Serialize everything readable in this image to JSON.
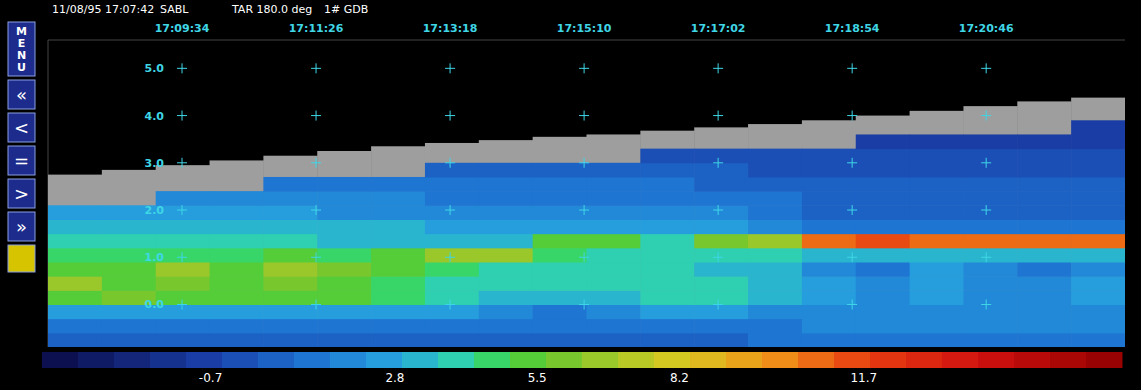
{
  "chart_data": {
    "type": "heatmap",
    "header": [
      "11/08/95 17:07:42",
      "SABL",
      "TAR 180.0 deg",
      "1# GDB"
    ],
    "menu": [
      "MENU",
      "«",
      "<",
      "=",
      ">",
      "»"
    ],
    "x": [
      61684.5,
      61729.5,
      61774.5,
      61819.5,
      61864.5,
      61909.5,
      61954.5,
      61999.5,
      62044.5,
      62089.5,
      62134.5,
      62179.5,
      62224.5,
      62269.5,
      62314.5,
      62359.5,
      62404.5,
      62449.5,
      62494.5,
      62539.5
    ],
    "y": [
      -0.75,
      -0.45,
      -0.15,
      0.15,
      0.45,
      0.75,
      1.05,
      1.35,
      1.65,
      1.95,
      2.25,
      2.55,
      2.85,
      3.15,
      3.45,
      3.75
    ],
    "cells": [
      [
        0.6,
        0.6,
        0.6,
        0.6,
        0.6,
        0.6,
        0.6,
        0.6,
        0.6,
        0.6,
        0.6,
        0.6,
        0.6,
        1.2,
        1.2,
        1.2,
        1.2,
        1.2,
        1.2,
        1.2
      ],
      [
        1.5,
        1.5,
        1.5,
        1.5,
        1.5,
        1.5,
        1.5,
        1.5,
        1.5,
        1.5,
        1.5,
        1.5,
        1.5,
        1.5,
        1.8,
        1.8,
        1.8,
        1.8,
        1.8,
        1.8
      ],
      [
        2.5,
        2.5,
        2.5,
        2.5,
        2.5,
        2.5,
        2.5,
        2.5,
        1.8,
        1.5,
        1.8,
        2.5,
        2.5,
        2.2,
        2,
        2,
        2,
        2,
        2,
        2
      ],
      [
        5,
        6,
        5,
        5.5,
        5,
        5.5,
        4.5,
        4,
        3,
        3.5,
        3.5,
        4,
        4,
        3.5,
        2.5,
        2,
        2.5,
        2.2,
        2,
        2.5
      ],
      [
        6.5,
        5.5,
        6,
        5,
        6,
        5.5,
        4.5,
        4,
        4,
        3.8,
        3.8,
        4,
        4,
        3.5,
        2.5,
        2,
        2.8,
        2,
        1.8,
        2.5
      ],
      [
        5.5,
        5,
        6.5,
        5.5,
        7,
        6,
        5,
        4.5,
        4.2,
        4,
        3.8,
        3.8,
        3.5,
        3.2,
        2,
        1.5,
        2.5,
        1.8,
        1.5,
        2
      ],
      [
        4.5,
        4.5,
        4.8,
        4.5,
        5,
        4.8,
        5,
        7,
        6.5,
        4.5,
        4,
        4.2,
        4,
        3.8,
        3,
        3,
        3.5,
        3,
        3,
        3.5
      ],
      [
        3.8,
        3.8,
        4,
        3.8,
        3.8,
        3.5,
        3.5,
        3.5,
        3.5,
        5.5,
        5,
        4,
        6,
        7,
        11,
        11.5,
        11,
        10.5,
        11,
        10.5
      ],
      [
        3.2,
        3.2,
        3.2,
        3,
        3,
        3,
        3,
        2.8,
        2.8,
        2.5,
        2.5,
        2.5,
        2.5,
        2,
        1.2,
        1.2,
        1.2,
        1.2,
        1.2,
        1.2
      ],
      [
        2.5,
        2.5,
        2.5,
        2.3,
        2.3,
        2.2,
        2.2,
        2,
        2,
        2,
        1.8,
        1.8,
        1.8,
        1.5,
        0.8,
        0.8,
        0.8,
        0.8,
        0.8,
        0.8
      ],
      [
        null,
        null,
        2,
        1.8,
        1.8,
        1.6,
        1.6,
        1.5,
        1.5,
        1.5,
        1.3,
        1.3,
        1.2,
        1,
        0.5,
        0.5,
        0.5,
        0.5,
        0.5,
        0.5
      ],
      [
        null,
        null,
        null,
        null,
        1.2,
        1.2,
        1,
        1,
        1,
        1,
        0.9,
        0.9,
        0.8,
        0.6,
        0.3,
        0.3,
        0.3,
        0.3,
        0.3,
        0.3
      ],
      [
        null,
        null,
        null,
        null,
        null,
        null,
        null,
        0.5,
        0.5,
        0.5,
        0.4,
        0.4,
        0.3,
        0.2,
        0,
        0,
        0,
        0,
        0,
        0
      ],
      [
        null,
        null,
        null,
        null,
        null,
        null,
        null,
        null,
        null,
        null,
        null,
        0.2,
        0.2,
        0,
        -0.3,
        -0.3,
        -0.3,
        -0.3,
        -0.3,
        -0.3
      ],
      [
        null,
        null,
        null,
        null,
        null,
        null,
        null,
        null,
        null,
        null,
        null,
        null,
        null,
        null,
        null,
        -0.5,
        -0.5,
        -0.5,
        -0.5,
        -0.5
      ],
      [
        null,
        null,
        null,
        null,
        null,
        null,
        null,
        null,
        null,
        null,
        null,
        null,
        null,
        null,
        null,
        null,
        null,
        null,
        null,
        -0.8
      ]
    ],
    "range_top": [
      2.75,
      2.85,
      2.95,
      3.05,
      3.15,
      3.25,
      3.35,
      3.42,
      3.48,
      3.55,
      3.6,
      3.68,
      3.75,
      3.82,
      3.9,
      4.0,
      4.1,
      4.2,
      4.3,
      4.38
    ],
    "xlim": [
      61662,
      62562
    ],
    "xticks": [
      {
        "value": 61774,
        "label": "17:09:34"
      },
      {
        "value": 61886,
        "label": "17:11:26"
      },
      {
        "value": 61998,
        "label": "17:13:18"
      },
      {
        "value": 62110,
        "label": "17:15:10"
      },
      {
        "value": 62222,
        "label": "17:17:02"
      },
      {
        "value": 62334,
        "label": "17:18:54"
      },
      {
        "value": 62446,
        "label": "17:20:46"
      }
    ],
    "ylim": [
      -0.9,
      5.6
    ],
    "yticks": [
      {
        "value": 0,
        "label": "0.0"
      },
      {
        "value": 1,
        "label": "1.0"
      },
      {
        "value": 2,
        "label": "2.0"
      },
      {
        "value": 3,
        "label": "3.0"
      },
      {
        "value": 4,
        "label": "4.0"
      },
      {
        "value": 5,
        "label": "5.0"
      }
    ],
    "grid": true,
    "colorbar": {
      "range": [
        -3.9,
        16.6
      ],
      "ticks": [
        -0.7,
        2.8,
        5.5,
        8.2,
        11.7
      ]
    }
  }
}
